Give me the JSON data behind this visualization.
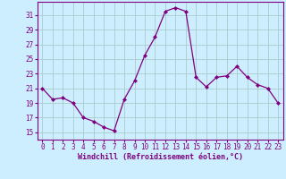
{
  "x": [
    0,
    1,
    2,
    3,
    4,
    5,
    6,
    7,
    8,
    9,
    10,
    11,
    12,
    13,
    14,
    15,
    16,
    17,
    18,
    19,
    20,
    21,
    22,
    23
  ],
  "y": [
    21,
    19.5,
    19.7,
    19,
    17,
    16.5,
    15.7,
    15.2,
    19.5,
    22,
    25.5,
    28,
    31.5,
    32,
    31.5,
    22.5,
    21.2,
    22.5,
    22.7,
    24,
    22.5,
    21.5,
    21,
    19
  ],
  "line_color": "#800080",
  "marker": "D",
  "marker_size": 2.0,
  "bg_color": "#cceeff",
  "grid_color": "#aacccc",
  "xlabel": "Windchill (Refroidissement éolien,°C)",
  "xlabel_color": "#800080",
  "ylabel_ticks": [
    15,
    17,
    19,
    21,
    23,
    25,
    27,
    29,
    31
  ],
  "ylim": [
    14.0,
    32.8
  ],
  "xlim": [
    -0.5,
    23.5
  ],
  "xticks": [
    0,
    1,
    2,
    3,
    4,
    5,
    6,
    7,
    8,
    9,
    10,
    11,
    12,
    13,
    14,
    15,
    16,
    17,
    18,
    19,
    20,
    21,
    22,
    23
  ],
  "tick_color": "#800080",
  "tick_label_color": "#800080",
  "spine_color": "#800080",
  "tick_fontsize": 5.5,
  "xlabel_fontsize": 6.0
}
